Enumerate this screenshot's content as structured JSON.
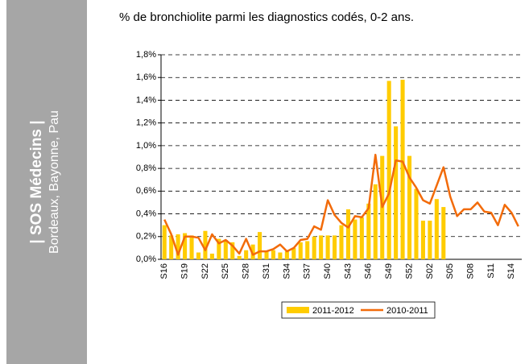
{
  "sidebar": {
    "title": "| SOS Médecins |",
    "subtitle": "Bordeaux, Bayonne, Pau"
  },
  "chart_data": {
    "type": "bar-line",
    "title": "% de bronchiolite parmi les diagnostics codés, 0-2 ans.",
    "categories": [
      "S16",
      null,
      null,
      "S19",
      null,
      null,
      "S22",
      null,
      null,
      "S25",
      null,
      null,
      "S28",
      null,
      null,
      "S31",
      null,
      null,
      "S34",
      null,
      null,
      "S37",
      null,
      null,
      "S40",
      null,
      null,
      "S43",
      null,
      null,
      "S46",
      null,
      null,
      "S49",
      null,
      null,
      "S52",
      null,
      null,
      "S02",
      null,
      null,
      "S05",
      null,
      null,
      "S08",
      null,
      null,
      "S11",
      null,
      null,
      "S14",
      null
    ],
    "series": [
      {
        "name": "2011-2012",
        "type": "bar",
        "color": "#ffcc00",
        "values": [
          0.3,
          0.21,
          0.22,
          0.23,
          0.21,
          0.06,
          0.25,
          0.05,
          0.18,
          0.17,
          0.15,
          0.03,
          0.08,
          0.13,
          0.24,
          0.07,
          0.08,
          0.06,
          0.07,
          0.1,
          0.15,
          0.16,
          0.2,
          0.21,
          0.21,
          0.21,
          0.3,
          0.44,
          0.35,
          0.37,
          0.49,
          0.66,
          0.91,
          1.57,
          1.17,
          1.58,
          0.91,
          0.62,
          0.34,
          0.34,
          0.53,
          0.46,
          null,
          null,
          null,
          null,
          null,
          null,
          null,
          null,
          null,
          null,
          null
        ]
      },
      {
        "name": "2010-2011",
        "type": "line",
        "color": "#f26b0a",
        "values": [
          0.35,
          0.22,
          0.04,
          0.2,
          0.2,
          0.19,
          0.08,
          0.22,
          0.14,
          0.17,
          0.12,
          0.05,
          0.18,
          0.04,
          0.07,
          0.07,
          0.09,
          0.13,
          0.07,
          0.1,
          0.17,
          0.18,
          0.29,
          0.26,
          0.52,
          0.39,
          0.32,
          0.28,
          0.38,
          0.37,
          0.45,
          0.92,
          0.46,
          0.58,
          0.87,
          0.86,
          0.72,
          0.63,
          0.52,
          0.49,
          0.65,
          0.81,
          0.55,
          0.38,
          0.44,
          0.44,
          0.5,
          0.42,
          0.41,
          0.3,
          0.48,
          0.41,
          0.29
        ]
      }
    ],
    "ylim": [
      0,
      1.8
    ],
    "yticks": [
      {
        "value": 0,
        "label": "0,0%"
      },
      {
        "value": 0.2,
        "label": "0,2%"
      },
      {
        "value": 0.4,
        "label": "0,4%"
      },
      {
        "value": 0.6,
        "label": "0,6%"
      },
      {
        "value": 0.8,
        "label": "0,8%"
      },
      {
        "value": 1.0,
        "label": "1,0%"
      },
      {
        "value": 1.2,
        "label": "1,2%"
      },
      {
        "value": 1.4,
        "label": "1,4%"
      },
      {
        "value": 1.6,
        "label": "1,6%"
      },
      {
        "value": 1.8,
        "label": "1,8%"
      }
    ],
    "grid": true,
    "legend": "bottom"
  }
}
